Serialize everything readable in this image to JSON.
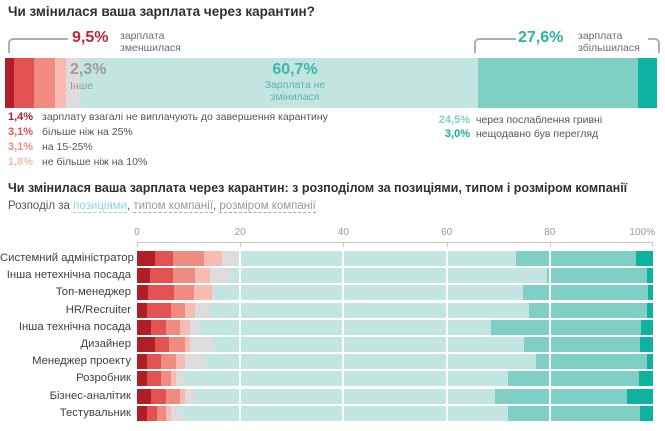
{
  "colors": {
    "no_pay": "#b01e28",
    "cut_over_25": "#e25250",
    "cut_15_25": "#ef8b80",
    "cut_under_10": "#f6bcb2",
    "other": "#dcdcdc",
    "unchanged": "#c3e5df",
    "hryvnia": "#7fcfc5",
    "review": "#0fb1a1",
    "decreased_label": "#c0243c",
    "increased_label": "#2bb3a3",
    "unchanged_label": "#3eb8aa",
    "other_label": "#9b9b9b",
    "link_active": "#93d6d6",
    "link_inactive": "#999999"
  },
  "chart_data": [
    {
      "type": "bar",
      "orientation": "horizontal-stacked-single",
      "title": "Чи змінилася ваша зарплата через карантин?",
      "unit": "%",
      "xlim": [
        0,
        100
      ],
      "segments": [
        {
          "key": "no_pay",
          "display": "1,4%",
          "value": 1.4,
          "label": "зарплату взагалі не виплачують до завершення карантину"
        },
        {
          "key": "cut_over_25",
          "display": "3,1%",
          "value": 3.1,
          "label": "більше ніж на 25%"
        },
        {
          "key": "cut_15_25",
          "display": "3,1%",
          "value": 3.1,
          "label": "на 15-25%"
        },
        {
          "key": "cut_under_10",
          "display": "1,8%",
          "value": 1.8,
          "label": "не більше ніж на 10%"
        },
        {
          "key": "other",
          "display": "2,3%",
          "value": 2.3,
          "label": "Інше"
        },
        {
          "key": "unchanged",
          "display": "60,7%",
          "value": 60.7,
          "label": "Зарплата не змінилася"
        },
        {
          "key": "hryvnia",
          "display": "24,5%",
          "value": 24.5,
          "label": "через послаблення гривні"
        },
        {
          "key": "review",
          "display": "3,0%",
          "value": 3.0,
          "label": "нещодавно був перегляд"
        }
      ],
      "annotations": {
        "decreased": {
          "display": "9,5%",
          "value": 9.5,
          "label": "зарплата зменшилася"
        },
        "other": {
          "display": "2,3%",
          "value": 2.3,
          "label": "Інше"
        },
        "unchanged": {
          "display": "60,7%",
          "value": 60.7,
          "label": "Зарплата не змінилася"
        },
        "increased": {
          "display": "27,6%",
          "value": 27.6,
          "label": "зарплата збільшилася"
        }
      },
      "legend_left": [
        {
          "pct": "1,4%",
          "key": "no_pay",
          "text": "зарплату взагалі не виплачують до завершення карантину"
        },
        {
          "pct": "3,1%",
          "key": "cut_over_25",
          "text": "більше ніж на 25%"
        },
        {
          "pct": "3,1%",
          "key": "cut_15_25",
          "text": "на 15-25%"
        },
        {
          "pct": "1,8%",
          "key": "cut_under_10",
          "text": "не більше ніж на 10%"
        }
      ],
      "legend_right": [
        {
          "pct": "24,5%",
          "key": "hryvnia",
          "text": "через послаблення гривні"
        },
        {
          "pct": "3,0%",
          "key": "review",
          "text": "нещодавно був перегляд"
        }
      ]
    },
    {
      "type": "bar",
      "orientation": "horizontal-stacked",
      "title": "Чи змінилася ваша зарплата через карантин: з розподілом за позиціями, типом і розміром компанії",
      "filter_prefix": "Розподіл за",
      "filters": [
        {
          "label": "позиціями",
          "active": true
        },
        {
          "label": "типом компанії",
          "active": false
        },
        {
          "label": "розміром компанії",
          "active": false
        }
      ],
      "x_ticks": [
        "0",
        "20",
        "40",
        "60",
        "80",
        "100%"
      ],
      "xlim": [
        0,
        100
      ],
      "grid": true,
      "categories": [
        "Системний адміністратор",
        "Інша нетехнічна посада",
        "Топ-менеджер",
        "HR/Recruiter",
        "Інша технічна посада",
        "Дизайнер",
        "Менеджер проекту",
        "Розробник",
        "Бізнес-аналітик",
        "Тестувальник"
      ],
      "series": [
        {
          "key": "no_pay",
          "name": "зарплату взагалі не виплачують до завершення карантину",
          "values": [
            3.5,
            2.5,
            2.2,
            1.9,
            2.8,
            3.5,
            1.9,
            1.9,
            2.8,
            1.9
          ]
        },
        {
          "key": "cut_over_25",
          "name": "зменшилася більше ніж на 25%",
          "values": [
            3.5,
            4.4,
            5.0,
            4.7,
            2.8,
            2.8,
            2.8,
            2.8,
            2.8,
            1.9
          ]
        },
        {
          "key": "cut_15_25",
          "name": "зменшилася на 15-25%",
          "values": [
            6.0,
            4.4,
            3.8,
            2.8,
            2.8,
            3.1,
            2.8,
            1.9,
            2.8,
            1.9
          ]
        },
        {
          "key": "cut_under_10",
          "name": "зменшилася не більше ніж на 10%",
          "values": [
            3.5,
            2.8,
            3.5,
            1.9,
            1.9,
            0.9,
            1.9,
            0.9,
            0.9,
            0.9
          ]
        },
        {
          "key": "other",
          "name": "Інше",
          "values": [
            3.5,
            4.1,
            0.9,
            2.8,
            1.9,
            4.7,
            3.8,
            1.6,
            2.2,
            2.2
          ]
        },
        {
          "key": "unchanged",
          "name": "Зарплата не змінилася",
          "values": [
            53.5,
            61.2,
            59.4,
            61.8,
            56.5,
            60.0,
            64.1,
            62.9,
            57.8,
            63.2
          ]
        },
        {
          "key": "hryvnia",
          "name": "збільшилася через послаблення гривні",
          "values": [
            23.2,
            19.4,
            24.2,
            22.9,
            29.0,
            22.5,
            21.5,
            25.3,
            25.7,
            25.5
          ]
        },
        {
          "key": "review",
          "name": "збільшилася — нещодавно був перегляд",
          "values": [
            3.3,
            1.2,
            1.0,
            1.2,
            2.3,
            2.5,
            1.2,
            2.7,
            5.0,
            2.5
          ]
        }
      ]
    }
  ]
}
